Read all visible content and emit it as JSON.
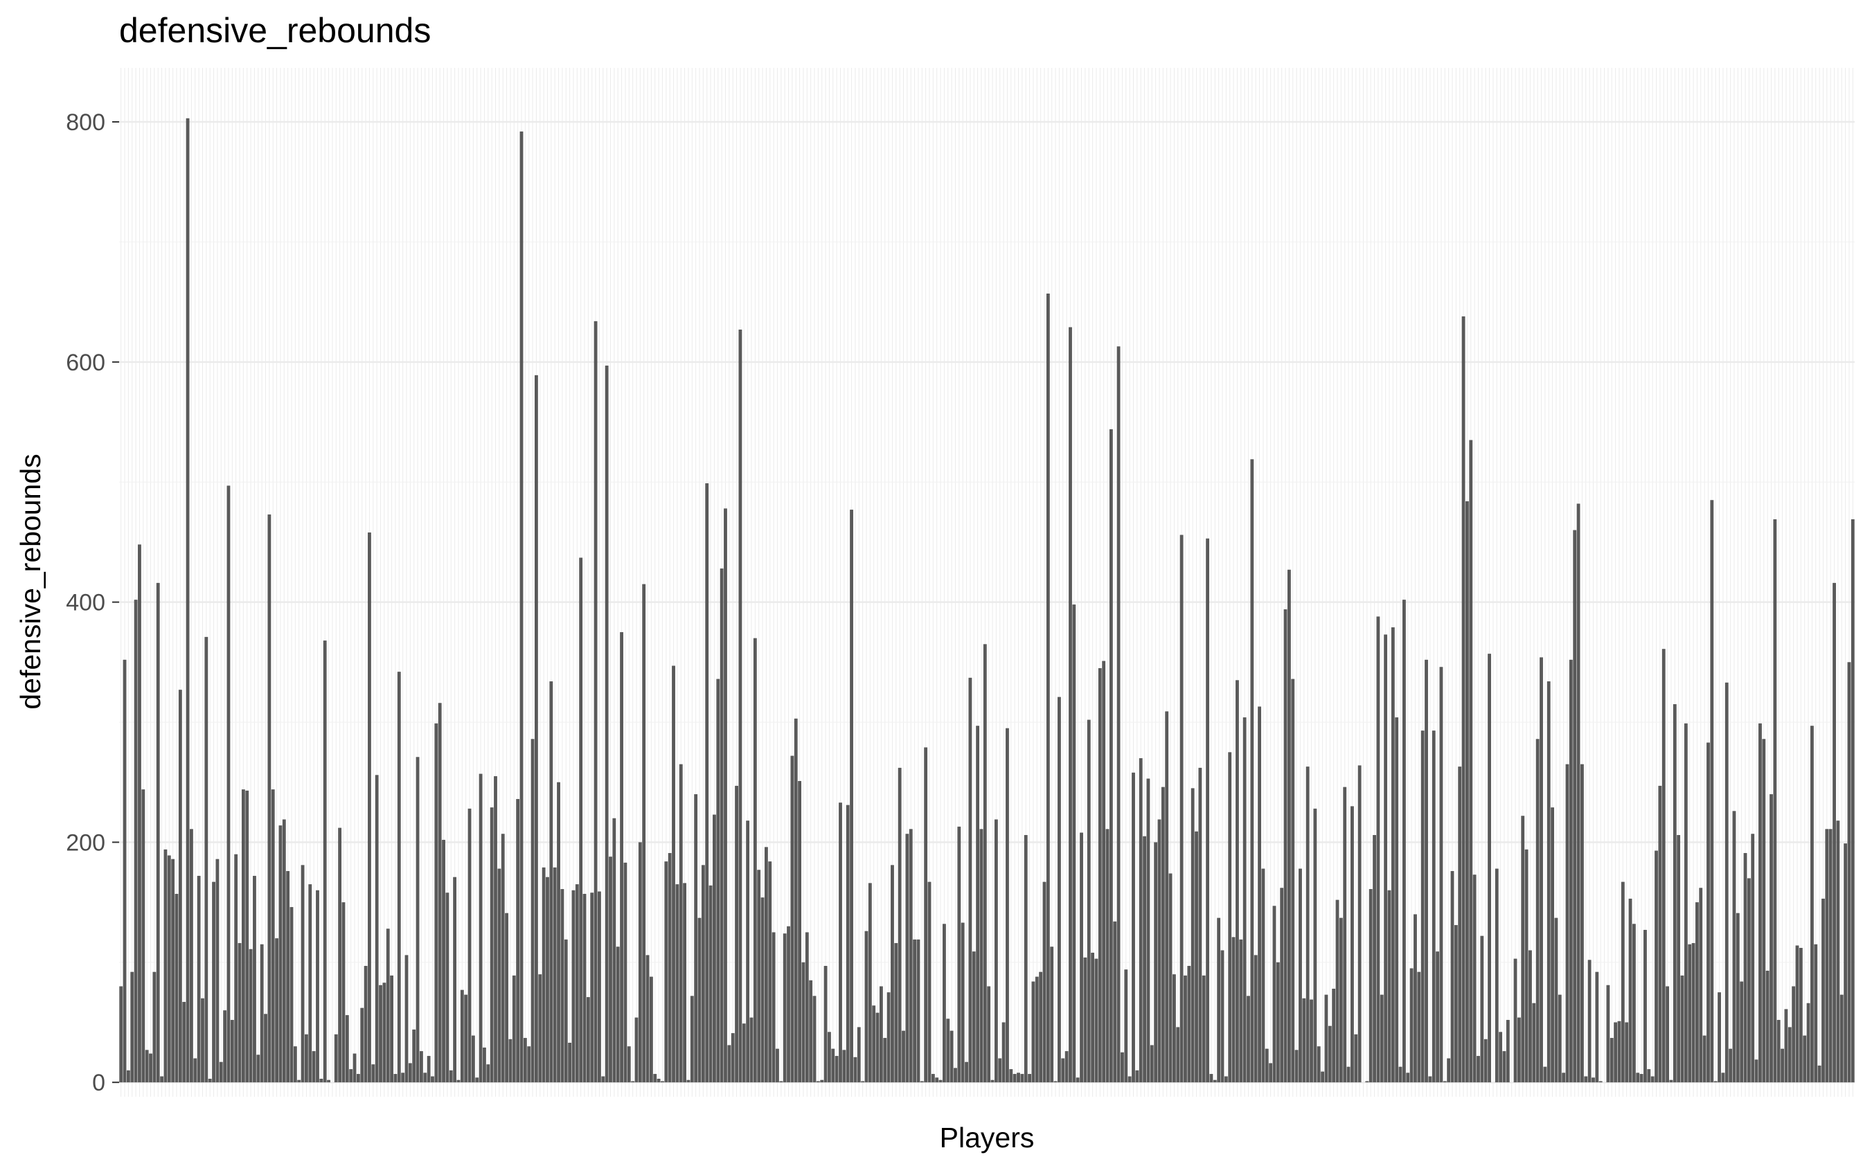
{
  "chart_data": {
    "type": "bar",
    "title": "defensive_rebounds",
    "xlabel": "Players",
    "ylabel": "defensive_rebounds",
    "ylim": [
      -12,
      845
    ],
    "yticks": [
      0,
      200,
      400,
      600,
      800
    ],
    "grid": true,
    "bar_color": "#595959",
    "panel_color": "#ffffff",
    "grid_color": "#ebebeb",
    "values": [
      80,
      352,
      10,
      92,
      402,
      448,
      244,
      27,
      24,
      92,
      416,
      5,
      194,
      189,
      186,
      157,
      327,
      67,
      803,
      211,
      20,
      172,
      70,
      371,
      3,
      167,
      186,
      17,
      60,
      497,
      52,
      190,
      116,
      244,
      243,
      111,
      172,
      23,
      115,
      57,
      473,
      244,
      120,
      214,
      219,
      176,
      146,
      30,
      2,
      181,
      40,
      165,
      26,
      160,
      3,
      368,
      2,
      0,
      40,
      212,
      150,
      56,
      11,
      24,
      7,
      62,
      97,
      458,
      15,
      256,
      81,
      83,
      128,
      89,
      7,
      342,
      8,
      106,
      16,
      44,
      271,
      26,
      8,
      22,
      5,
      299,
      316,
      202,
      158,
      10,
      171,
      2,
      77,
      73,
      228,
      39,
      4,
      257,
      29,
      15,
      229,
      255,
      178,
      207,
      141,
      36,
      89,
      236,
      792,
      37,
      30,
      286,
      589,
      90,
      179,
      171,
      334,
      179,
      250,
      161,
      119,
      33,
      160,
      165,
      437,
      157,
      71,
      158,
      634,
      159,
      5,
      597,
      188,
      220,
      113,
      375,
      183,
      30,
      1,
      54,
      200,
      415,
      106,
      88,
      7,
      3,
      1,
      184,
      191,
      347,
      165,
      265,
      166,
      2,
      72,
      240,
      137,
      181,
      499,
      164,
      223,
      336,
      428,
      478,
      31,
      41,
      247,
      627,
      49,
      218,
      54,
      370,
      177,
      154,
      196,
      184,
      125,
      28,
      1,
      124,
      130,
      272,
      303,
      251,
      100,
      125,
      85,
      72,
      1,
      2,
      97,
      42,
      28,
      22,
      233,
      27,
      231,
      477,
      21,
      46,
      1,
      126,
      166,
      64,
      58,
      80,
      37,
      75,
      181,
      116,
      262,
      43,
      207,
      211,
      119,
      119,
      1,
      279,
      167,
      7,
      4,
      2,
      132,
      53,
      43,
      12,
      213,
      133,
      17,
      337,
      109,
      297,
      211,
      365,
      80,
      2,
      219,
      20,
      50,
      295,
      11,
      7,
      8,
      7,
      206,
      7,
      84,
      88,
      92,
      167,
      657,
      113,
      1,
      321,
      20,
      26,
      629,
      398,
      4,
      208,
      104,
      302,
      108,
      103,
      345,
      351,
      211,
      544,
      134,
      613,
      25,
      94,
      5,
      258,
      10,
      270,
      205,
      253,
      31,
      200,
      219,
      246,
      309,
      174,
      90,
      46,
      456,
      89,
      97,
      245,
      209,
      262,
      89,
      453,
      7,
      2,
      137,
      110,
      5,
      275,
      121,
      335,
      119,
      304,
      72,
      519,
      106,
      313,
      178,
      28,
      16,
      147,
      100,
      162,
      394,
      427,
      336,
      27,
      178,
      70,
      263,
      69,
      228,
      30,
      9,
      73,
      47,
      78,
      152,
      137,
      246,
      13,
      230,
      40,
      264,
      0,
      1,
      161,
      206,
      388,
      73,
      373,
      160,
      379,
      304,
      13,
      402,
      8,
      95,
      140,
      92,
      293,
      352,
      5,
      293,
      109,
      346,
      1,
      20,
      176,
      131,
      263,
      638,
      484,
      535,
      173,
      22,
      122,
      36,
      357,
      0,
      178,
      42,
      26,
      52,
      0,
      103,
      54,
      222,
      194,
      110,
      66,
      286,
      354,
      13,
      334,
      229,
      137,
      73,
      8,
      265,
      352,
      460,
      482,
      265,
      5,
      102,
      4,
      92,
      1,
      0,
      81,
      37,
      50,
      51,
      167,
      50,
      153,
      132,
      8,
      7,
      127,
      11,
      5,
      193,
      247,
      361,
      80,
      2,
      315,
      206,
      89,
      299,
      115,
      116,
      150,
      162,
      39,
      283,
      485,
      1,
      75,
      8,
      333,
      28,
      226,
      141,
      84,
      191,
      170,
      207,
      19,
      299,
      286,
      93,
      240,
      469,
      52,
      28,
      61,
      46,
      80,
      114,
      112,
      39,
      66,
      297,
      115,
      14,
      153,
      211,
      211,
      416,
      218,
      73,
      199,
      350,
      469
    ]
  }
}
